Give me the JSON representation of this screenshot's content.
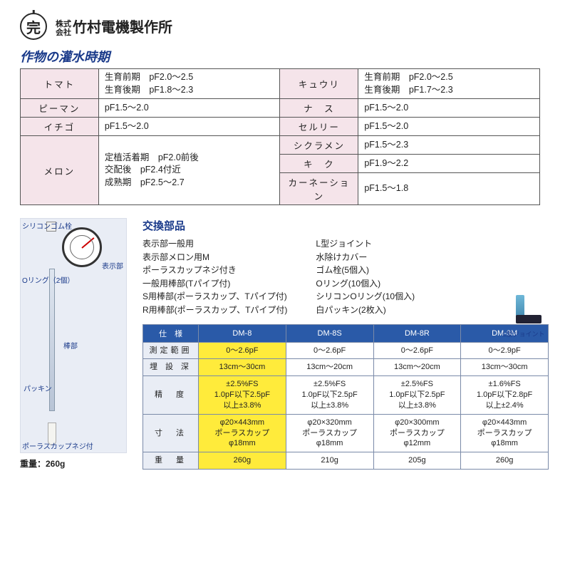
{
  "company": {
    "prefix": "株式\n会社",
    "name": "竹村電機製作所",
    "logo_char": "完"
  },
  "section1_title": "作物の灌水時期",
  "irrigation_rows": [
    {
      "cropL": "トマト",
      "valL": "生育前期　pF2.0～2.5\n生育後期　pF1.8～2.3",
      "cropR": "キュウリ",
      "valR": "生育前期　pF2.0～2.5\n生育後期　pF1.7～2.3"
    },
    {
      "cropL": "ピーマン",
      "valL": "pF1.5～2.0",
      "cropR": "ナ　ス",
      "valR": "pF1.5～2.0"
    },
    {
      "cropL": "イチゴ",
      "valL": "pF1.5～2.0",
      "cropR": "セルリー",
      "valR": "pF1.5～2.0"
    },
    {
      "cropL": "メロン",
      "valL": "定植活着期　pF2.0前後\n交配後　pF2.4付近\n成熟期　pF2.5～2.7",
      "cropR": "",
      "valR": "",
      "rightRows": [
        {
          "crop": "シクラメン",
          "val": "pF1.5～2.3"
        },
        {
          "crop": "キ　ク",
          "val": "pF1.9～2.2"
        },
        {
          "crop": "カーネーション",
          "val": "pF1.5～1.8"
        }
      ]
    }
  ],
  "diagram": {
    "labels": {
      "silicone": "シリコンゴム栓",
      "display": "表示部",
      "oring": "Oリング（2個）",
      "rod": "棒部",
      "packing": "パッキン",
      "porous": "ポーラスカップネジ付"
    },
    "weight_label": "重量：260g"
  },
  "parts": {
    "title": "交換部品",
    "col1": [
      "表示部一般用",
      "表示部メロン用M",
      "ポーラスカップネジ付き",
      "一般用棒部(Tパイプ付)",
      "S用棒部(ポーラスカップ、Tパイプ付)",
      "R用棒部(ポーラスカップ、Tパイプ付)"
    ],
    "col2": [
      "L型ジョイント",
      "水除けカバー",
      "ゴム栓(5個入)",
      "Oリング(10個入)",
      "シリコンOリング(10個入)",
      "白パッキン(2枚入)"
    ],
    "joint_label": "L型ジョイント"
  },
  "spec": {
    "header": [
      "仕　様",
      "DM-8",
      "DM-8S",
      "DM-8R",
      "DM-8M"
    ],
    "rows": [
      {
        "head": "測定範囲",
        "cells": [
          "0～2.6pF",
          "0～2.6pF",
          "0～2.6pF",
          "0～2.9pF"
        ]
      },
      {
        "head": "埋 設 深",
        "cells": [
          "13cm～30cm",
          "13cm～20cm",
          "13cm～20cm",
          "13cm～30cm"
        ]
      },
      {
        "head": "精　度",
        "cells": [
          "±2.5%FS\n1.0pF以下2.5pF\n以上±3.8%",
          "±2.5%FS\n1.0pF以下2.5pF\n以上±3.8%",
          "±2.5%FS\n1.0pF以下2.5pF\n以上±3.8%",
          "±1.6%FS\n1.0pF以下2.8pF\n以上±2.4%"
        ]
      },
      {
        "head": "寸　法",
        "cells": [
          "φ20×443mm\nポーラスカップφ18mm",
          "φ20×320mm\nポーラスカップφ18mm",
          "φ20×300mm\nポーラスカップφ12mm",
          "φ20×443mm\nポーラスカップφ18mm"
        ]
      },
      {
        "head": "重　量",
        "cells": [
          "260g",
          "210g",
          "205g",
          "260g"
        ]
      }
    ],
    "highlight_col": 0,
    "colors": {
      "header_bg": "#2a5aa8",
      "highlight_bg": "#ffeb3b",
      "rowhead_bg": "#e9edf5"
    }
  }
}
